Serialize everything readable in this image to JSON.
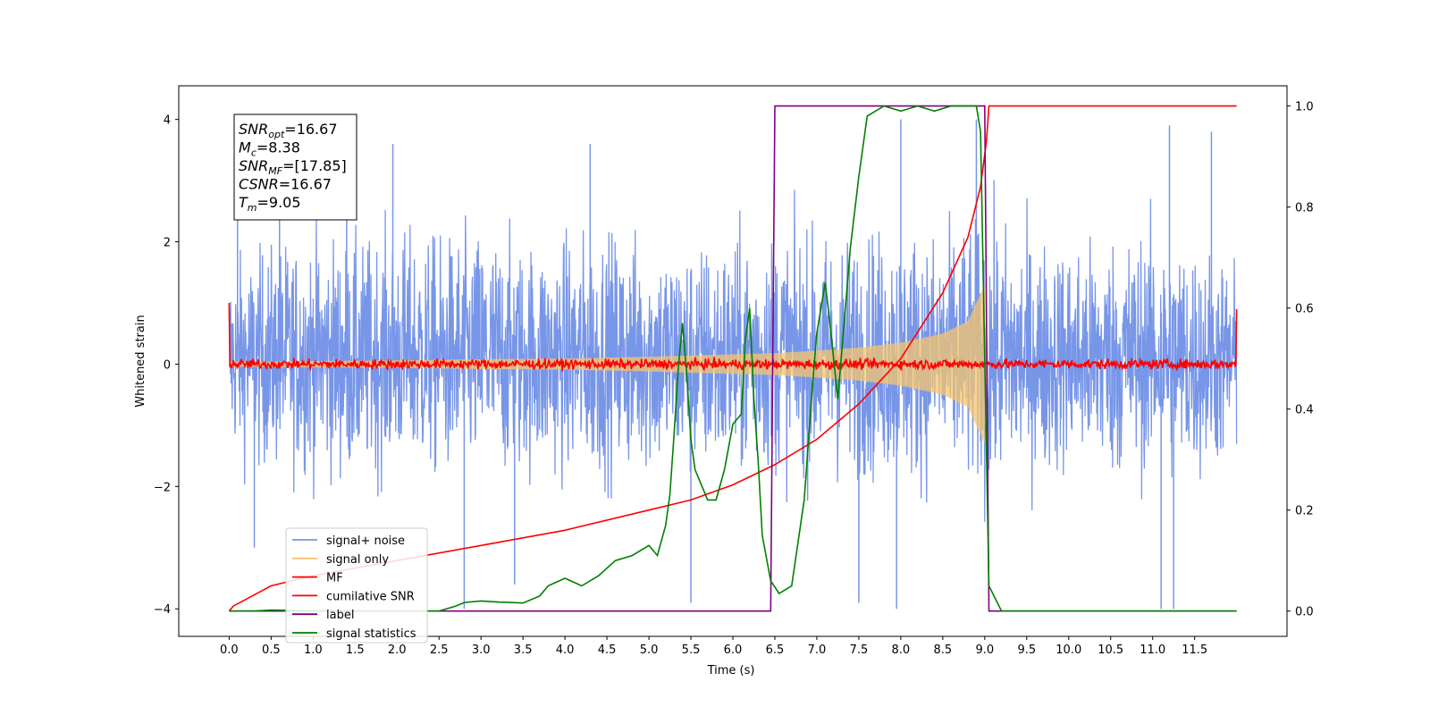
{
  "chart_data": {
    "type": "line",
    "xlabel": "Time (s)",
    "ylabel": "Whitened strain",
    "xlim": [
      -0.6,
      12.6
    ],
    "ylim": [
      -4.45,
      4.55
    ],
    "y2lim": [
      -0.05,
      1.04
    ],
    "xticks": [
      "0.0",
      "0.5",
      "1.0",
      "1.5",
      "2.0",
      "2.5",
      "3.0",
      "3.5",
      "4.0",
      "4.5",
      "5.0",
      "5.5",
      "6.0",
      "6.5",
      "7.0",
      "7.5",
      "8.0",
      "8.5",
      "9.0",
      "9.5",
      "10.0",
      "10.5",
      "11.0",
      "11.5"
    ],
    "yticks": [
      "4",
      "2",
      "0",
      "−2",
      "−4"
    ],
    "y2ticks": [
      "1.0",
      "0.8",
      "0.6",
      "0.4",
      "0.2",
      "0.0"
    ],
    "grid": false,
    "legend_position": "lower-left",
    "annotation": {
      "lines": [
        {
          "sym": "SNR",
          "sub": "opt",
          "val": "=16.67"
        },
        {
          "sym": "M",
          "sub": "c",
          "val": "=8.38"
        },
        {
          "sym": "SNR",
          "sub": "MF",
          "val": "=[17.85]"
        },
        {
          "sym": "CSNR",
          "sub": "",
          "val": "=16.67"
        },
        {
          "sym": "T",
          "sub": "m",
          "val": "=9.05"
        }
      ]
    },
    "series": [
      {
        "name": "signal+ noise",
        "color": "#7896e8",
        "axis": "left",
        "x_range": [
          0,
          12
        ],
        "envelope_upper": [
          2.2,
          2.5,
          2.7,
          2.6,
          2.8,
          2.7,
          2.8,
          2.6,
          2.7,
          2.8,
          2.7,
          2.6,
          2.7,
          2.8,
          2.7,
          2.8,
          2.9,
          2.8,
          3.1,
          2.7,
          2.6,
          2.7,
          2.8,
          2.6,
          2.2
        ],
        "envelope_lower": [
          -2.0,
          -2.3,
          -2.4,
          -2.5,
          -2.4,
          -2.5,
          -2.5,
          -2.4,
          -2.5,
          -2.5,
          -2.4,
          -2.5,
          -2.5,
          -2.4,
          -2.5,
          -2.5,
          -2.6,
          -2.6,
          -2.9,
          -2.5,
          -2.4,
          -2.5,
          -2.5,
          -2.5,
          -2.1
        ],
        "spikes": [
          [
            0.1,
            3.9
          ],
          [
            0.6,
            3.1
          ],
          [
            1.4,
            3.4
          ],
          [
            1.95,
            3.6
          ],
          [
            4.3,
            3.6
          ],
          [
            8.0,
            4.0
          ],
          [
            8.9,
            4.0
          ],
          [
            11.2,
            3.9
          ],
          [
            11.7,
            3.8
          ],
          [
            0.3,
            -3.0
          ],
          [
            2.8,
            -4.0
          ],
          [
            3.4,
            -3.6
          ],
          [
            5.5,
            -3.9
          ],
          [
            7.5,
            -3.9
          ],
          [
            7.95,
            -4.0
          ],
          [
            11.1,
            -4.0
          ],
          [
            11.25,
            -4.0
          ]
        ]
      },
      {
        "name": "signal only",
        "color": "#f5c46e",
        "axis": "left",
        "x": [
          0,
          1,
          2,
          3,
          4,
          5,
          6,
          6.5,
          7,
          7.5,
          8,
          8.5,
          8.8,
          9.0,
          9.02
        ],
        "amplitude": [
          0.04,
          0.05,
          0.06,
          0.08,
          0.09,
          0.12,
          0.16,
          0.18,
          0.22,
          0.27,
          0.35,
          0.5,
          0.7,
          1.3,
          0.0
        ]
      },
      {
        "name": "MF",
        "color": "#ff0000",
        "axis": "left",
        "x_range": [
          0,
          12
        ],
        "baseline": 0.0,
        "noise_amp": 0.08,
        "start_value": 1.0,
        "end_value": 0.9
      },
      {
        "name": "cumilative SNR",
        "color": "#ff0000",
        "axis": "right",
        "x": [
          0,
          0.05,
          0.5,
          1,
          2,
          3,
          4,
          5,
          5.5,
          6,
          6.5,
          7,
          7.5,
          8,
          8.5,
          8.8,
          8.95,
          9.02,
          9.05,
          9.1,
          12
        ],
        "y": [
          0.0,
          0.01,
          0.05,
          0.07,
          0.1,
          0.13,
          0.16,
          0.2,
          0.22,
          0.25,
          0.29,
          0.34,
          0.41,
          0.5,
          0.63,
          0.74,
          0.84,
          0.93,
          1.0,
          1.0,
          1.0
        ]
      },
      {
        "name": "label",
        "color": "#800080",
        "axis": "right",
        "x": [
          0,
          6.45,
          6.5,
          9.0,
          9.05,
          12
        ],
        "y": [
          0,
          0,
          1,
          1,
          0,
          0
        ]
      },
      {
        "name": "signal statistics",
        "color": "#008000",
        "axis": "right",
        "x": [
          0,
          0.3,
          0.5,
          1.0,
          1.5,
          2.0,
          2.5,
          2.7,
          2.8,
          3.0,
          3.2,
          3.5,
          3.7,
          3.8,
          4.0,
          4.2,
          4.4,
          4.6,
          4.8,
          4.9,
          5.0,
          5.1,
          5.2,
          5.25,
          5.3,
          5.35,
          5.4,
          5.45,
          5.5,
          5.55,
          5.6,
          5.7,
          5.8,
          5.9,
          6.0,
          6.1,
          6.15,
          6.2,
          6.25,
          6.3,
          6.35,
          6.45,
          6.55,
          6.7,
          6.85,
          6.95,
          7.0,
          7.1,
          7.15,
          7.25,
          7.3,
          7.4,
          7.5,
          7.6,
          7.8,
          8.0,
          8.2,
          8.4,
          8.6,
          8.8,
          8.9,
          8.95,
          9.0,
          9.05,
          9.2,
          12
        ],
        "y": [
          0.0,
          0.0,
          0.002,
          0.0,
          0.0,
          0.0,
          0.0,
          0.01,
          0.017,
          0.02,
          0.018,
          0.016,
          0.03,
          0.05,
          0.065,
          0.05,
          0.07,
          0.1,
          0.11,
          0.12,
          0.13,
          0.11,
          0.17,
          0.23,
          0.35,
          0.48,
          0.57,
          0.47,
          0.34,
          0.28,
          0.26,
          0.22,
          0.22,
          0.28,
          0.37,
          0.39,
          0.54,
          0.6,
          0.42,
          0.3,
          0.15,
          0.06,
          0.035,
          0.05,
          0.22,
          0.45,
          0.55,
          0.65,
          0.58,
          0.42,
          0.52,
          0.72,
          0.86,
          0.98,
          1.0,
          0.99,
          1.0,
          0.99,
          1.0,
          1.0,
          1.0,
          0.95,
          0.5,
          0.05,
          0.0,
          0.0
        ]
      }
    ]
  }
}
